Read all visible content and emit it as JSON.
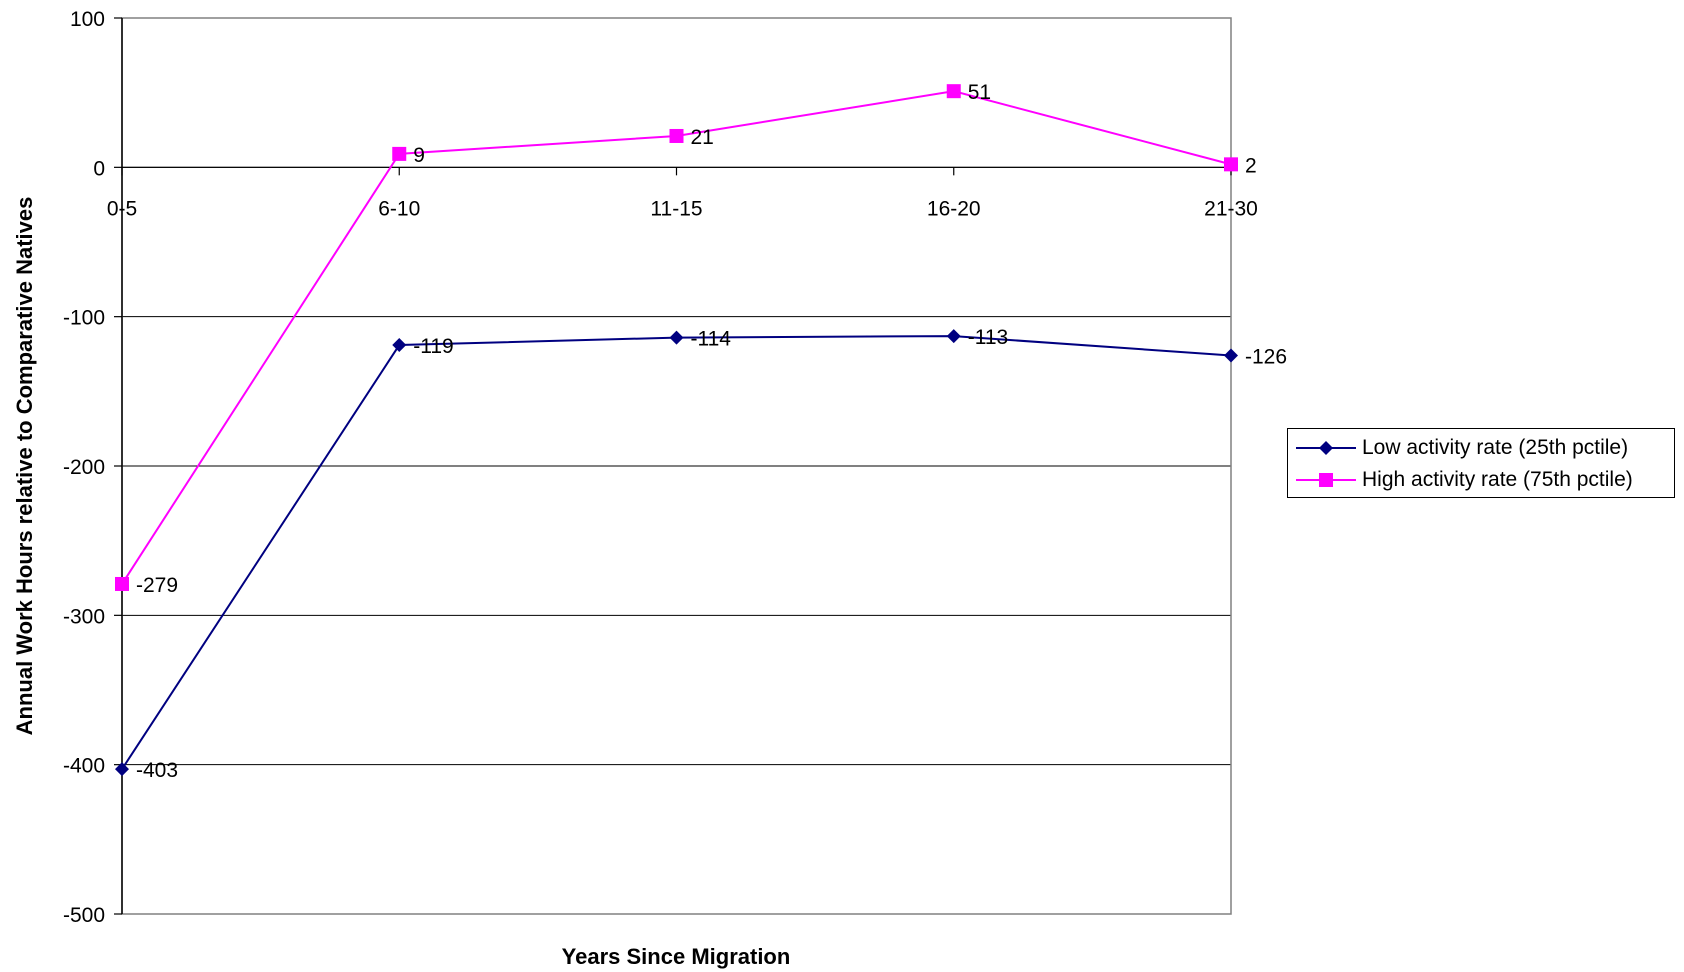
{
  "chart_data": {
    "type": "line",
    "title": "",
    "xlabel": "Years Since Migration",
    "ylabel": "Annual Work Hours relative to Comparative Natives",
    "categories": [
      "0-5",
      "6-10",
      "11-15",
      "16-20",
      "21-30"
    ],
    "ylim": [
      -500,
      100
    ],
    "yticks": [
      100,
      0,
      -100,
      -200,
      -300,
      -400,
      -500
    ],
    "grid": true,
    "legend_position": "right",
    "series": [
      {
        "name": "Low activity rate (25th pctile)",
        "values": [
          -403,
          -119,
          -114,
          -113,
          -126
        ],
        "labels": [
          "-403",
          "-119",
          "-114",
          "-113",
          "-126"
        ],
        "color": "#000080",
        "marker": "diamond"
      },
      {
        "name": "High activity rate (75th pctile)",
        "values": [
          -279,
          9,
          21,
          51,
          2
        ],
        "labels": [
          "-279",
          "9",
          "21",
          "51",
          "2"
        ],
        "color": "#FF00FF",
        "marker": "square"
      }
    ]
  }
}
